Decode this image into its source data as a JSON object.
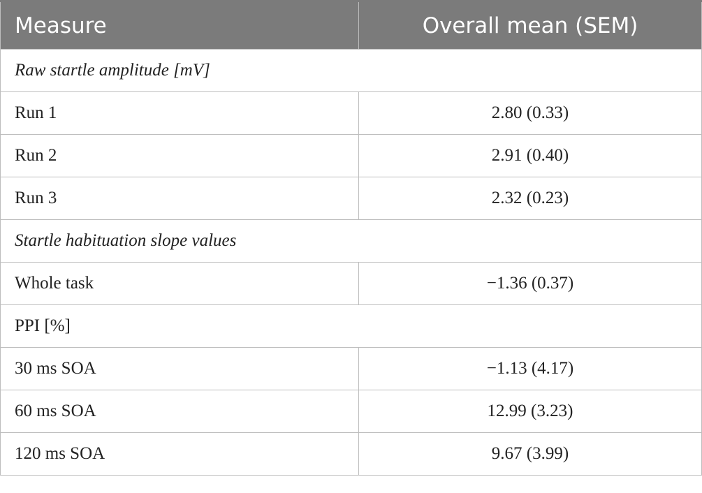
{
  "table": {
    "headers": [
      "Measure",
      "Overall mean (SEM)"
    ],
    "sections": [
      {
        "title": "Raw startle amplitude [mV]",
        "italic": true,
        "rows": [
          {
            "measure": "Run 1",
            "value": "2.80 (0.33)"
          },
          {
            "measure": "Run 2",
            "value": "2.91 (0.40)"
          },
          {
            "measure": "Run 3",
            "value": "2.32 (0.23)"
          }
        ]
      },
      {
        "title": "Startle habituation slope values",
        "italic": true,
        "rows": [
          {
            "measure": "Whole task",
            "value": "−1.36 (0.37)"
          }
        ]
      },
      {
        "title": "PPI [%]",
        "italic": false,
        "rows": [
          {
            "measure": "30 ms SOA",
            "value": "−1.13 (4.17)"
          },
          {
            "measure": "60 ms SOA",
            "value": "12.99 (3.23)"
          },
          {
            "measure": "120 ms SOA",
            "value": "9.67 (3.99)"
          }
        ]
      }
    ]
  }
}
